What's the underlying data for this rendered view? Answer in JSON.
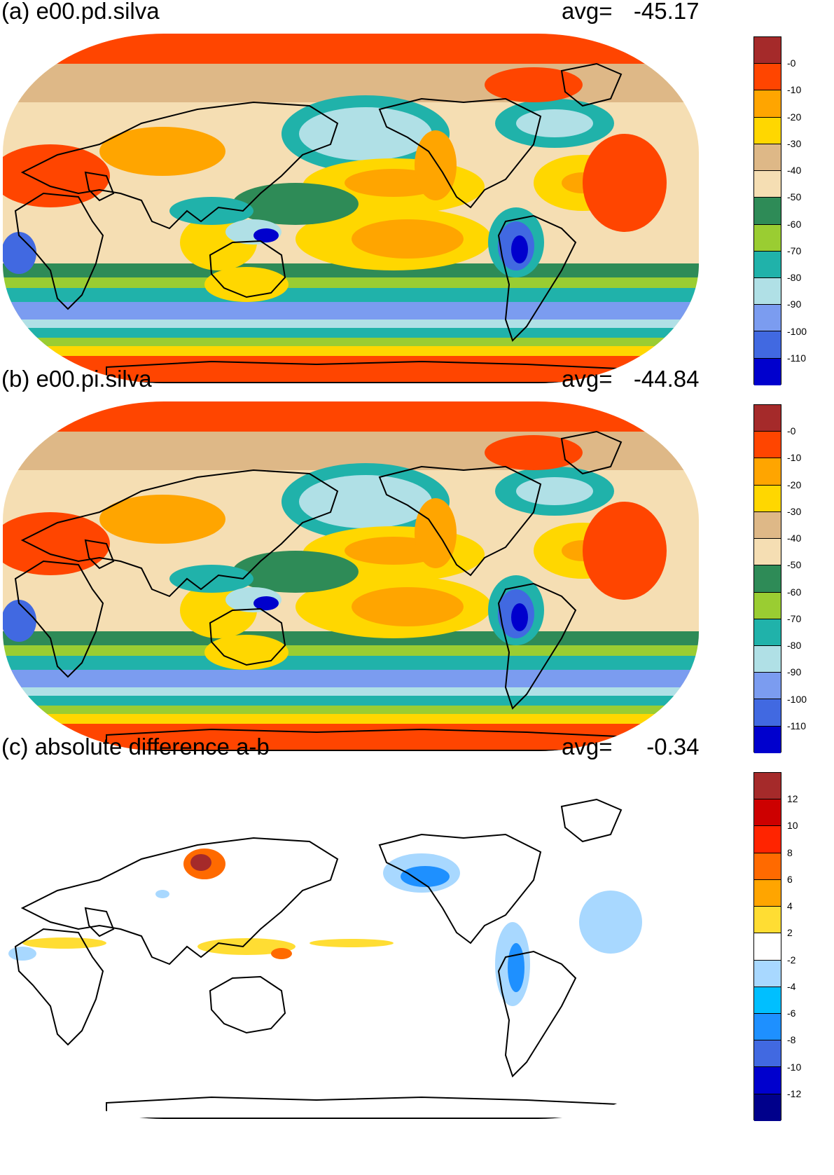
{
  "panels": [
    {
      "title": "(a) e00.pd.silva",
      "avg_label": "avg=",
      "avg_value": "-45.17",
      "style": "full",
      "colorbar": {
        "labels": [
          "-0",
          "-10",
          "-20",
          "-30",
          "-40",
          "-50",
          "-60",
          "-70",
          "-80",
          "-90",
          "-100",
          "-110"
        ],
        "colors": [
          "#a52a2a",
          "#ff4500",
          "#ffa500",
          "#ffd700",
          "#deb887",
          "#f5deb3",
          "#2e8b57",
          "#9acd32",
          "#20b2aa",
          "#b0e0e6",
          "#7b9cf0",
          "#4169e1",
          "#0000cd"
        ]
      }
    },
    {
      "title": "(b) e00.pi.silva",
      "avg_label": "avg=",
      "avg_value": "-44.84",
      "style": "full",
      "colorbar": {
        "labels": [
          "-0",
          "-10",
          "-20",
          "-30",
          "-40",
          "-50",
          "-60",
          "-70",
          "-80",
          "-90",
          "-100",
          "-110"
        ],
        "colors": [
          "#a52a2a",
          "#ff4500",
          "#ffa500",
          "#ffd700",
          "#deb887",
          "#f5deb3",
          "#2e8b57",
          "#9acd32",
          "#20b2aa",
          "#b0e0e6",
          "#7b9cf0",
          "#4169e1",
          "#0000cd"
        ]
      }
    },
    {
      "title": "(c) absolute difference a-b",
      "avg_label": "avg=",
      "avg_value": "-0.34",
      "style": "difference",
      "colorbar": {
        "labels": [
          "12",
          "10",
          "8",
          "6",
          "4",
          "2",
          "-2",
          "-4",
          "-6",
          "-8",
          "-10",
          "-12"
        ],
        "colors": [
          "#a52a2a",
          "#cd0000",
          "#ff2400",
          "#ff6a00",
          "#ffa500",
          "#ffdd33",
          "#ffffff",
          "#a8d8ff",
          "#00bfff",
          "#1e90ff",
          "#4169e1",
          "#0000cd",
          "#00008b"
        ]
      }
    }
  ],
  "map_palette": {
    "land_outline": "#000000",
    "ocean_base_full": "#f5deb3",
    "ocean_base_difference": "#ffffff"
  }
}
